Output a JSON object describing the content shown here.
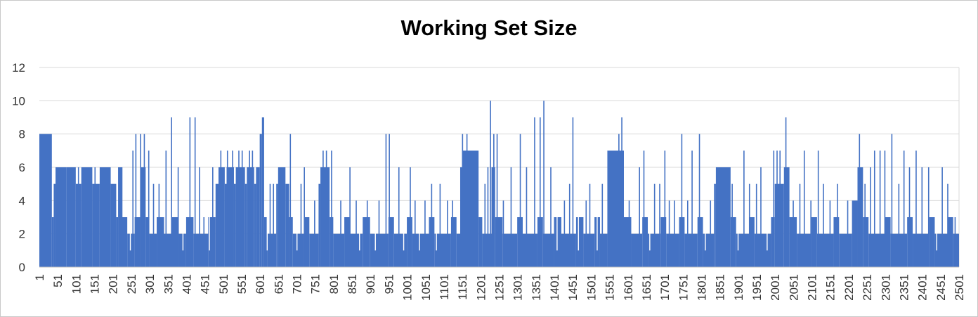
{
  "chart_data": {
    "type": "bar",
    "title": "Working Set Size",
    "xlabel": "",
    "ylabel": "",
    "xlim": [
      1,
      2501
    ],
    "ylim": [
      0,
      12
    ],
    "yticks": [
      0,
      2,
      4,
      6,
      8,
      10,
      12
    ],
    "xticks": [
      1,
      51,
      101,
      151,
      201,
      251,
      301,
      351,
      401,
      451,
      501,
      551,
      601,
      651,
      701,
      751,
      801,
      851,
      901,
      951,
      1001,
      1051,
      1101,
      1151,
      1201,
      1251,
      1301,
      1351,
      1401,
      1451,
      1501,
      1551,
      1601,
      1651,
      1701,
      1751,
      1801,
      1851,
      1901,
      1951,
      2001,
      2051,
      2101,
      2151,
      2201,
      2251,
      2301,
      2351,
      2401,
      2451,
      2501
    ],
    "grid": true,
    "legend": "none",
    "series": [
      {
        "color": "#4472c4",
        "segments": [
          {
            "x": 1,
            "y": 8
          },
          {
            "x": 35,
            "y": 3
          },
          {
            "x": 40,
            "y": 5
          },
          {
            "x": 45,
            "y": 6
          },
          {
            "x": 75,
            "y": 6
          },
          {
            "x": 100,
            "y": 5
          },
          {
            "x": 115,
            "y": 6
          },
          {
            "x": 145,
            "y": 5
          },
          {
            "x": 165,
            "y": 6
          },
          {
            "x": 195,
            "y": 5
          },
          {
            "x": 210,
            "y": 3
          },
          {
            "x": 215,
            "y": 6
          },
          {
            "x": 225,
            "y": 3
          },
          {
            "x": 240,
            "y": 2
          },
          {
            "x": 260,
            "y": 3
          },
          {
            "x": 275,
            "y": 6
          },
          {
            "x": 290,
            "y": 3
          },
          {
            "x": 300,
            "y": 2
          },
          {
            "x": 320,
            "y": 3
          },
          {
            "x": 340,
            "y": 2
          },
          {
            "x": 360,
            "y": 3
          },
          {
            "x": 380,
            "y": 2
          },
          {
            "x": 400,
            "y": 3
          },
          {
            "x": 420,
            "y": 2
          },
          {
            "x": 460,
            "y": 3
          },
          {
            "x": 480,
            "y": 5
          },
          {
            "x": 488,
            "y": 6
          },
          {
            "x": 505,
            "y": 5
          },
          {
            "x": 510,
            "y": 6
          },
          {
            "x": 530,
            "y": 5
          },
          {
            "x": 535,
            "y": 6
          },
          {
            "x": 560,
            "y": 5
          },
          {
            "x": 565,
            "y": 6
          },
          {
            "x": 585,
            "y": 5
          },
          {
            "x": 590,
            "y": 6
          },
          {
            "x": 600,
            "y": 8
          },
          {
            "x": 606,
            "y": 9
          },
          {
            "x": 612,
            "y": 3
          },
          {
            "x": 620,
            "y": 2
          },
          {
            "x": 645,
            "y": 5
          },
          {
            "x": 650,
            "y": 6
          },
          {
            "x": 670,
            "y": 5
          },
          {
            "x": 680,
            "y": 3
          },
          {
            "x": 690,
            "y": 2
          },
          {
            "x": 720,
            "y": 3
          },
          {
            "x": 735,
            "y": 2
          },
          {
            "x": 760,
            "y": 5
          },
          {
            "x": 765,
            "y": 6
          },
          {
            "x": 790,
            "y": 3
          },
          {
            "x": 800,
            "y": 2
          },
          {
            "x": 830,
            "y": 3
          },
          {
            "x": 845,
            "y": 2
          },
          {
            "x": 880,
            "y": 3
          },
          {
            "x": 900,
            "y": 2
          },
          {
            "x": 950,
            "y": 3
          },
          {
            "x": 965,
            "y": 2
          },
          {
            "x": 1000,
            "y": 3
          },
          {
            "x": 1015,
            "y": 2
          },
          {
            "x": 1060,
            "y": 3
          },
          {
            "x": 1075,
            "y": 2
          },
          {
            "x": 1120,
            "y": 3
          },
          {
            "x": 1135,
            "y": 2
          },
          {
            "x": 1145,
            "y": 6
          },
          {
            "x": 1150,
            "y": 7
          },
          {
            "x": 1195,
            "y": 3
          },
          {
            "x": 1205,
            "y": 2
          },
          {
            "x": 1230,
            "y": 6
          },
          {
            "x": 1240,
            "y": 3
          },
          {
            "x": 1260,
            "y": 2
          },
          {
            "x": 1300,
            "y": 3
          },
          {
            "x": 1315,
            "y": 2
          },
          {
            "x": 1355,
            "y": 3
          },
          {
            "x": 1370,
            "y": 2
          },
          {
            "x": 1400,
            "y": 3
          },
          {
            "x": 1420,
            "y": 2
          },
          {
            "x": 1460,
            "y": 3
          },
          {
            "x": 1480,
            "y": 2
          },
          {
            "x": 1510,
            "y": 3
          },
          {
            "x": 1525,
            "y": 2
          },
          {
            "x": 1545,
            "y": 7
          },
          {
            "x": 1590,
            "y": 3
          },
          {
            "x": 1610,
            "y": 2
          },
          {
            "x": 1640,
            "y": 3
          },
          {
            "x": 1655,
            "y": 2
          },
          {
            "x": 1690,
            "y": 3
          },
          {
            "x": 1705,
            "y": 2
          },
          {
            "x": 1740,
            "y": 3
          },
          {
            "x": 1755,
            "y": 2
          },
          {
            "x": 1790,
            "y": 3
          },
          {
            "x": 1805,
            "y": 2
          },
          {
            "x": 1835,
            "y": 5
          },
          {
            "x": 1840,
            "y": 6
          },
          {
            "x": 1880,
            "y": 3
          },
          {
            "x": 1895,
            "y": 2
          },
          {
            "x": 1930,
            "y": 3
          },
          {
            "x": 1945,
            "y": 2
          },
          {
            "x": 1990,
            "y": 3
          },
          {
            "x": 2000,
            "y": 5
          },
          {
            "x": 2025,
            "y": 6
          },
          {
            "x": 2040,
            "y": 3
          },
          {
            "x": 2060,
            "y": 2
          },
          {
            "x": 2100,
            "y": 3
          },
          {
            "x": 2115,
            "y": 2
          },
          {
            "x": 2160,
            "y": 3
          },
          {
            "x": 2175,
            "y": 2
          },
          {
            "x": 2210,
            "y": 4
          },
          {
            "x": 2225,
            "y": 6
          },
          {
            "x": 2240,
            "y": 3
          },
          {
            "x": 2255,
            "y": 2
          },
          {
            "x": 2300,
            "y": 3
          },
          {
            "x": 2315,
            "y": 2
          },
          {
            "x": 2360,
            "y": 3
          },
          {
            "x": 2375,
            "y": 2
          },
          {
            "x": 2420,
            "y": 3
          },
          {
            "x": 2435,
            "y": 2
          },
          {
            "x": 2470,
            "y": 3
          },
          {
            "x": 2485,
            "y": 2
          },
          {
            "x": 2501,
            "y": 2
          }
        ],
        "spikes": [
          {
            "x": 52,
            "y": 6
          },
          {
            "x": 60,
            "y": 6
          },
          {
            "x": 68,
            "y": 6
          },
          {
            "x": 84,
            "y": 6
          },
          {
            "x": 96,
            "y": 6
          },
          {
            "x": 107,
            "y": 6
          },
          {
            "x": 128,
            "y": 6
          },
          {
            "x": 141,
            "y": 6
          },
          {
            "x": 152,
            "y": 6
          },
          {
            "x": 170,
            "y": 6
          },
          {
            "x": 180,
            "y": 6
          },
          {
            "x": 192,
            "y": 6
          },
          {
            "x": 225,
            "y": 6
          },
          {
            "x": 248,
            "y": 1
          },
          {
            "x": 255,
            "y": 7
          },
          {
            "x": 263,
            "y": 8
          },
          {
            "x": 276,
            "y": 8
          },
          {
            "x": 286,
            "y": 8
          },
          {
            "x": 298,
            "y": 7
          },
          {
            "x": 311,
            "y": 5
          },
          {
            "x": 326,
            "y": 5
          },
          {
            "x": 345,
            "y": 7
          },
          {
            "x": 360,
            "y": 9
          },
          {
            "x": 378,
            "y": 6
          },
          {
            "x": 391,
            "y": 1
          },
          {
            "x": 410,
            "y": 9
          },
          {
            "x": 424,
            "y": 9
          },
          {
            "x": 436,
            "y": 6
          },
          {
            "x": 448,
            "y": 3
          },
          {
            "x": 463,
            "y": 1
          },
          {
            "x": 472,
            "y": 6
          },
          {
            "x": 494,
            "y": 7
          },
          {
            "x": 512,
            "y": 7
          },
          {
            "x": 526,
            "y": 7
          },
          {
            "x": 543,
            "y": 7
          },
          {
            "x": 552,
            "y": 7
          },
          {
            "x": 572,
            "y": 7
          },
          {
            "x": 580,
            "y": 7
          },
          {
            "x": 620,
            "y": 1
          },
          {
            "x": 628,
            "y": 5
          },
          {
            "x": 637,
            "y": 5
          },
          {
            "x": 657,
            "y": 6
          },
          {
            "x": 683,
            "y": 8
          },
          {
            "x": 701,
            "y": 1
          },
          {
            "x": 712,
            "y": 5
          },
          {
            "x": 721,
            "y": 6
          },
          {
            "x": 749,
            "y": 4
          },
          {
            "x": 772,
            "y": 7
          },
          {
            "x": 781,
            "y": 7
          },
          {
            "x": 795,
            "y": 7
          },
          {
            "x": 820,
            "y": 4
          },
          {
            "x": 845,
            "y": 6
          },
          {
            "x": 862,
            "y": 4
          },
          {
            "x": 871,
            "y": 1
          },
          {
            "x": 892,
            "y": 4
          },
          {
            "x": 914,
            "y": 1
          },
          {
            "x": 924,
            "y": 4
          },
          {
            "x": 943,
            "y": 8
          },
          {
            "x": 952,
            "y": 8
          },
          {
            "x": 978,
            "y": 6
          },
          {
            "x": 991,
            "y": 1
          },
          {
            "x": 1009,
            "y": 6
          },
          {
            "x": 1022,
            "y": 4
          },
          {
            "x": 1034,
            "y": 1
          },
          {
            "x": 1049,
            "y": 4
          },
          {
            "x": 1067,
            "y": 5
          },
          {
            "x": 1080,
            "y": 1
          },
          {
            "x": 1090,
            "y": 5
          },
          {
            "x": 1110,
            "y": 4
          },
          {
            "x": 1124,
            "y": 4
          },
          {
            "x": 1151,
            "y": 8
          },
          {
            "x": 1163,
            "y": 8
          },
          {
            "x": 1187,
            "y": 4
          },
          {
            "x": 1212,
            "y": 5
          },
          {
            "x": 1220,
            "y": 6
          },
          {
            "x": 1227,
            "y": 10
          },
          {
            "x": 1236,
            "y": 8
          },
          {
            "x": 1245,
            "y": 8
          },
          {
            "x": 1262,
            "y": 4
          },
          {
            "x": 1283,
            "y": 6
          },
          {
            "x": 1308,
            "y": 8
          },
          {
            "x": 1325,
            "y": 6
          },
          {
            "x": 1347,
            "y": 9
          },
          {
            "x": 1362,
            "y": 9
          },
          {
            "x": 1372,
            "y": 10
          },
          {
            "x": 1391,
            "y": 6
          },
          {
            "x": 1408,
            "y": 1
          },
          {
            "x": 1428,
            "y": 4
          },
          {
            "x": 1442,
            "y": 5
          },
          {
            "x": 1451,
            "y": 9
          },
          {
            "x": 1466,
            "y": 1
          },
          {
            "x": 1487,
            "y": 4
          },
          {
            "x": 1497,
            "y": 5
          },
          {
            "x": 1517,
            "y": 1
          },
          {
            "x": 1531,
            "y": 5
          },
          {
            "x": 1576,
            "y": 8
          },
          {
            "x": 1584,
            "y": 9
          },
          {
            "x": 1604,
            "y": 4
          },
          {
            "x": 1632,
            "y": 6
          },
          {
            "x": 1644,
            "y": 7
          },
          {
            "x": 1660,
            "y": 1
          },
          {
            "x": 1673,
            "y": 5
          },
          {
            "x": 1687,
            "y": 5
          },
          {
            "x": 1701,
            "y": 7
          },
          {
            "x": 1713,
            "y": 4
          },
          {
            "x": 1727,
            "y": 4
          },
          {
            "x": 1747,
            "y": 8
          },
          {
            "x": 1763,
            "y": 4
          },
          {
            "x": 1775,
            "y": 7
          },
          {
            "x": 1795,
            "y": 8
          },
          {
            "x": 1811,
            "y": 1
          },
          {
            "x": 1825,
            "y": 4
          },
          {
            "x": 1884,
            "y": 5
          },
          {
            "x": 1900,
            "y": 1
          },
          {
            "x": 1916,
            "y": 7
          },
          {
            "x": 1931,
            "y": 5
          },
          {
            "x": 1950,
            "y": 5
          },
          {
            "x": 1962,
            "y": 6
          },
          {
            "x": 1979,
            "y": 1
          },
          {
            "x": 1997,
            "y": 7
          },
          {
            "x": 2006,
            "y": 7
          },
          {
            "x": 2014,
            "y": 7
          },
          {
            "x": 2030,
            "y": 9
          },
          {
            "x": 2050,
            "y": 4
          },
          {
            "x": 2068,
            "y": 5
          },
          {
            "x": 2080,
            "y": 7
          },
          {
            "x": 2098,
            "y": 4
          },
          {
            "x": 2118,
            "y": 7
          },
          {
            "x": 2132,
            "y": 5
          },
          {
            "x": 2150,
            "y": 4
          },
          {
            "x": 2170,
            "y": 5
          },
          {
            "x": 2198,
            "y": 4
          },
          {
            "x": 2230,
            "y": 8
          },
          {
            "x": 2245,
            "y": 5
          },
          {
            "x": 2260,
            "y": 6
          },
          {
            "x": 2271,
            "y": 7
          },
          {
            "x": 2286,
            "y": 7
          },
          {
            "x": 2299,
            "y": 7
          },
          {
            "x": 2318,
            "y": 8
          },
          {
            "x": 2337,
            "y": 5
          },
          {
            "x": 2351,
            "y": 7
          },
          {
            "x": 2366,
            "y": 6
          },
          {
            "x": 2384,
            "y": 7
          },
          {
            "x": 2400,
            "y": 6
          },
          {
            "x": 2418,
            "y": 6
          },
          {
            "x": 2440,
            "y": 1
          },
          {
            "x": 2455,
            "y": 6
          },
          {
            "x": 2470,
            "y": 5
          },
          {
            "x": 2490,
            "y": 3
          }
        ]
      }
    ]
  }
}
